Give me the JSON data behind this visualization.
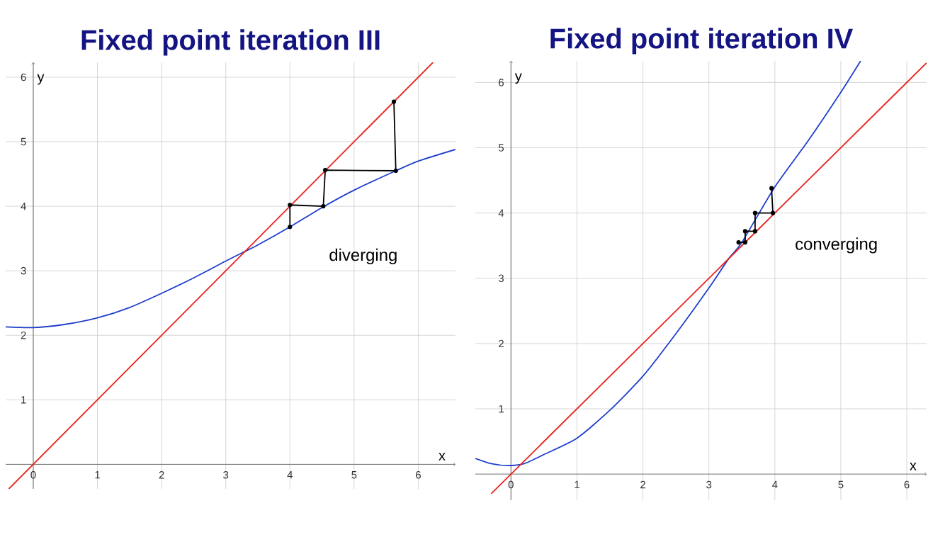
{
  "chart_data": [
    {
      "type": "line",
      "title": "Fixed point iteration III",
      "xlabel": "x",
      "ylabel": "y",
      "xlim": [
        -0.43,
        6.58
      ],
      "ylim": [
        -0.38,
        6.23
      ],
      "xticks": [
        0,
        1,
        2,
        3,
        4,
        5,
        6
      ],
      "yticks": [
        1,
        2,
        3,
        4,
        5,
        6
      ],
      "grid": true,
      "annotations": [
        "diverging"
      ],
      "series": [
        {
          "color": "#1f3fcc",
          "marker": "none",
          "x": [
            -0.43,
            0,
            0.5,
            1,
            1.5,
            2,
            2.5,
            3,
            3.3,
            3.5,
            4,
            4.5,
            5,
            5.65,
            6,
            6.58
          ],
          "values": [
            2.13,
            2.12,
            2.17,
            2.27,
            2.43,
            2.65,
            2.89,
            3.15,
            3.3,
            3.4,
            3.68,
            3.98,
            4.25,
            4.55,
            4.7,
            4.88
          ]
        },
        {
          "color": "#e8231f",
          "marker": "none",
          "x": [
            -0.38,
            6.23
          ],
          "values": [
            -0.38,
            6.23
          ]
        },
        {
          "color": "#000000",
          "marker": "circle",
          "x": [
            4.0,
            4.0,
            4.52,
            4.55,
            5.65,
            5.62
          ],
          "values": [
            3.68,
            4.02,
            4.0,
            4.56,
            4.55,
            5.62
          ]
        }
      ]
    },
    {
      "type": "line",
      "title": "Fixed point iteration IV",
      "xlabel": "x",
      "ylabel": "y",
      "xlim": [
        -0.54,
        6.3
      ],
      "ylim": [
        -0.4,
        6.33
      ],
      "xticks": [
        0,
        1,
        2,
        3,
        4,
        5,
        6
      ],
      "yticks": [
        1,
        2,
        3,
        4,
        5,
        6
      ],
      "grid": true,
      "annotations": [
        "converging"
      ],
      "series": [
        {
          "color": "#1f3fcc",
          "marker": "none",
          "x": [
            -0.54,
            -0.3,
            -0.05,
            0.2,
            0.5,
            1,
            1.5,
            2,
            2.5,
            3,
            3.3,
            3.5,
            4,
            4.5,
            5,
            5.3
          ],
          "values": [
            0.24,
            0.16,
            0.13,
            0.16,
            0.3,
            0.55,
            0.98,
            1.5,
            2.15,
            2.85,
            3.3,
            3.55,
            4.4,
            5.1,
            5.85,
            6.33
          ]
        },
        {
          "color": "#e8231f",
          "marker": "none",
          "x": [
            -0.3,
            6.3
          ],
          "values": [
            -0.3,
            6.3
          ]
        },
        {
          "color": "#000000",
          "marker": "circle",
          "x": [
            3.95,
            3.97,
            3.7,
            3.7,
            3.55,
            3.55,
            3.45
          ],
          "values": [
            4.38,
            4.0,
            4.0,
            3.72,
            3.72,
            3.55,
            3.55
          ]
        }
      ]
    }
  ]
}
